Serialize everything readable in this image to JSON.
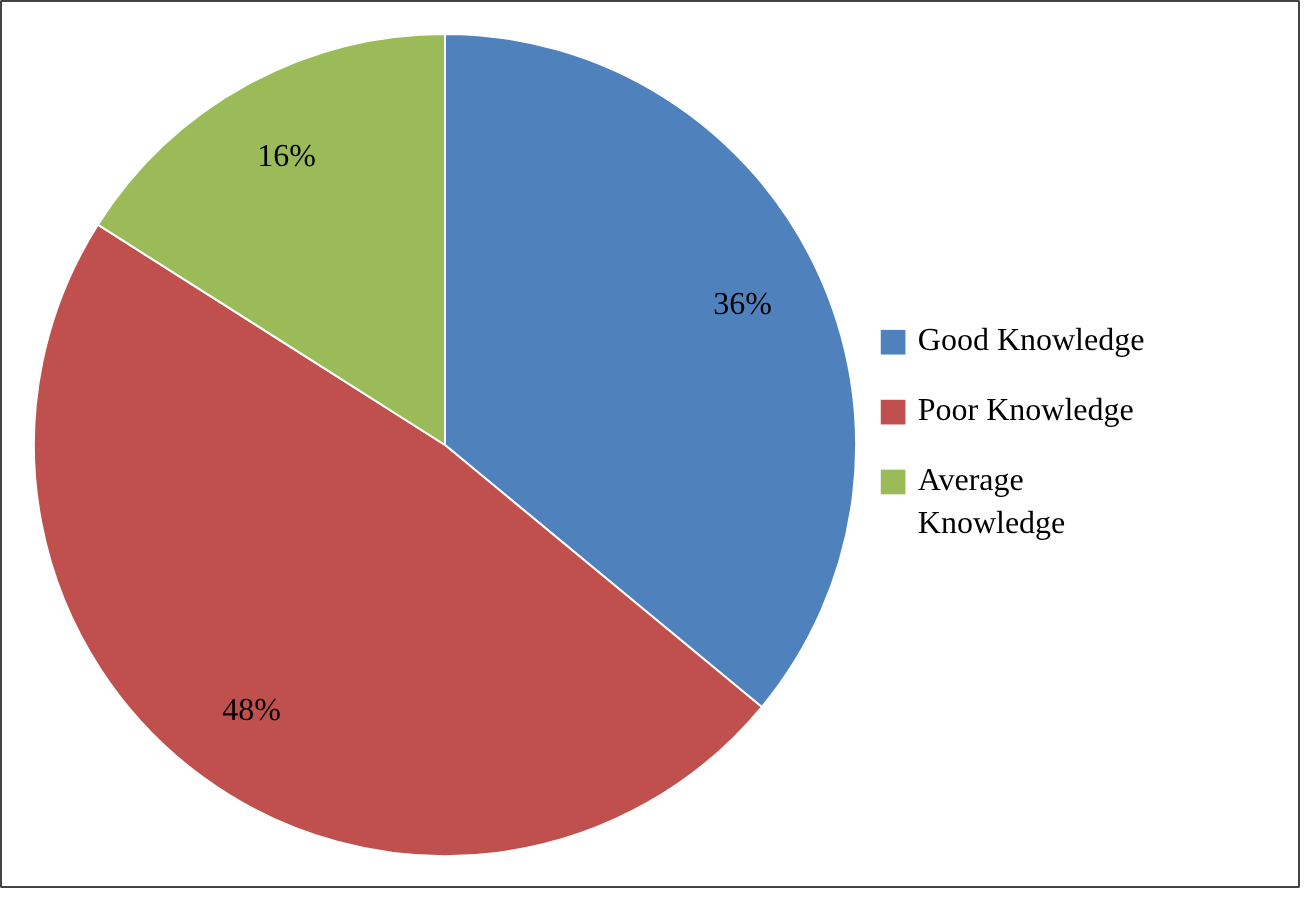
{
  "chart_data": {
    "type": "pie",
    "categories": [
      "Good Knowledge",
      "Poor Knowledge",
      "Average Knowledge"
    ],
    "values": [
      36,
      48,
      16
    ],
    "value_labels": [
      "36%",
      "48%",
      "16%"
    ],
    "colors": [
      "#4f81bd",
      "#c0504d",
      "#9bbb59"
    ],
    "legend": "right"
  }
}
